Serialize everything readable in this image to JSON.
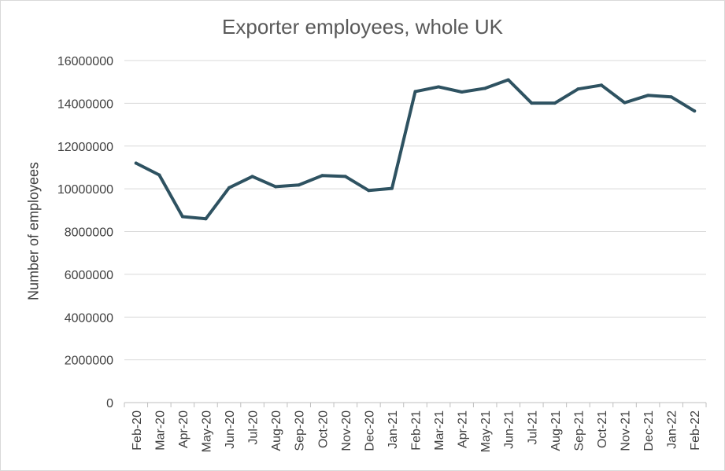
{
  "chart_data": {
    "type": "line",
    "title": "Exporter employees, whole UK",
    "xlabel": "",
    "ylabel": "Number of employees",
    "ylim": [
      0,
      16000000
    ],
    "yticks": [
      0,
      2000000,
      4000000,
      6000000,
      8000000,
      10000000,
      12000000,
      14000000,
      16000000
    ],
    "grid": "horizontal",
    "legend": "none",
    "categories": [
      "Feb-20",
      "Mar-20",
      "Apr-20",
      "May-20",
      "Jun-20",
      "Jul-20",
      "Aug-20",
      "Sep-20",
      "Oct-20",
      "Nov-20",
      "Dec-20",
      "Jan-21",
      "Feb-21",
      "Mar-21",
      "Apr-21",
      "May-21",
      "Jun-21",
      "Jul-21",
      "Aug-21",
      "Sep-21",
      "Oct-21",
      "Nov-21",
      "Dec-21",
      "Jan-22",
      "Feb-22"
    ],
    "series": [
      {
        "values": [
          11200000,
          10650000,
          8700000,
          8600000,
          10050000,
          10580000,
          10100000,
          10180000,
          10620000,
          10580000,
          9920000,
          10020000,
          14550000,
          14770000,
          14530000,
          14700000,
          15100000,
          14010000,
          14010000,
          14670000,
          14850000,
          14030000,
          14370000,
          14300000,
          13640000
        ],
        "color": "#2e5261"
      }
    ],
    "colors": {
      "line": "#2e5261",
      "grid": "#d9d9d9",
      "axis": "#bfbfbf",
      "text": "#404040",
      "title": "#595959"
    }
  }
}
